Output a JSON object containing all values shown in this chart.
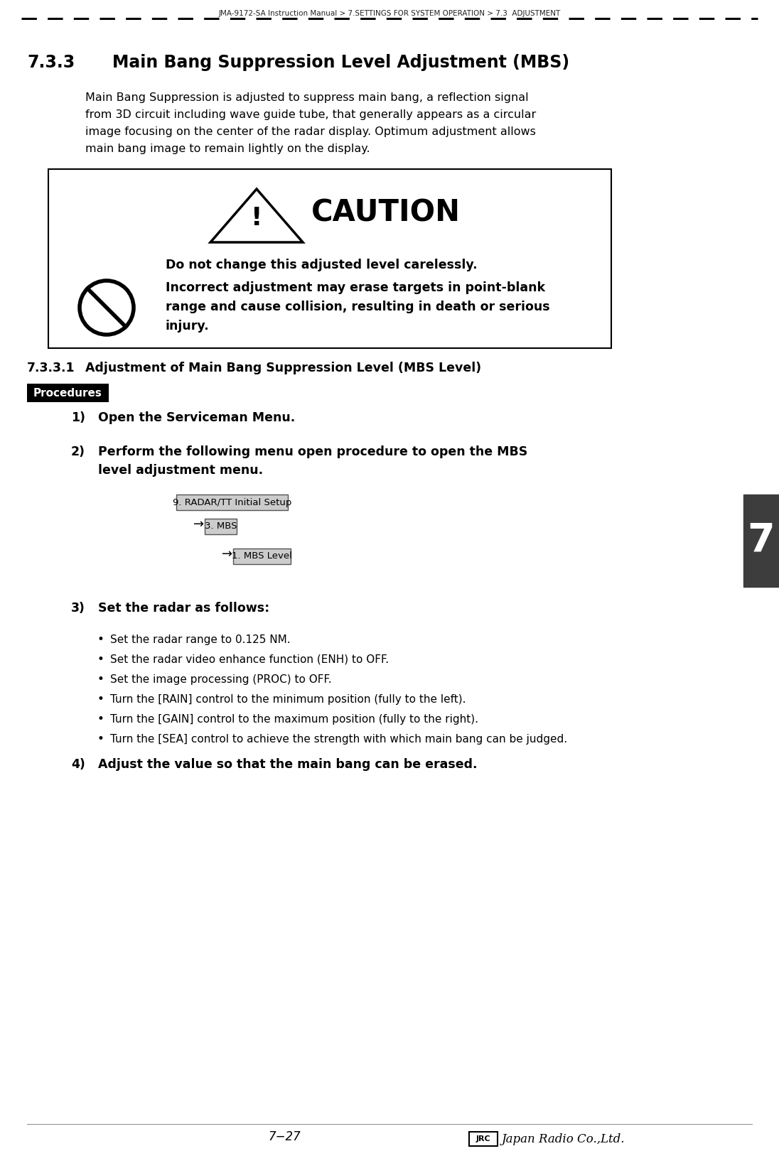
{
  "page_title": "JMA-9172-SA Instruction Manual > 7.SETTINGS FOR SYSTEM OPERATION > 7.3  ADJUSTMENT",
  "section_number": "7.3.3",
  "section_title": "Main Bang Suppression Level Adjustment (MBS)",
  "intro_text_lines": [
    "Main Bang Suppression is adjusted to suppress main bang, a reflection signal",
    "from 3D circuit including wave guide tube, that generally appears as a circular",
    "image focusing on the center of the radar display. Optimum adjustment allows",
    "main bang image to remain lightly on the display."
  ],
  "caution_title": "CAUTION",
  "caution_text1": "Do not change this adjusted level carelessly.",
  "caution_text2_lines": [
    "Incorrect adjustment may erase targets in point-blank",
    "range and cause collision, resulting in death or serious",
    "injury."
  ],
  "subsection_number": "7.3.3.1",
  "subsection_title": "Adjustment of Main Bang Suppression Level (MBS Level)",
  "procedures_label": "Procedures",
  "step1_num": "1)",
  "step1": "Open the Serviceman Menu.",
  "step2_num": "2)",
  "step2_lines": [
    "Perform the following menu open procedure to open the MBS",
    "level adjustment menu."
  ],
  "menu1": "9. RADAR/TT Initial Setup",
  "menu2": "3. MBS",
  "menu3": "1. MBS Level",
  "step3_num": "3)",
  "step3_label": "Set the radar as follows:",
  "bullets": [
    "Set the radar range to 0.125 NM.",
    "Set the radar video enhance function (ENH) to OFF.",
    "Set the image processing (PROC) to OFF.",
    "Turn the [RAIN] control to the minimum position (fully to the left).",
    "Turn the [GAIN] control to the maximum position (fully to the right).",
    "Turn the [SEA] control to achieve the strength with which main bang can be judged."
  ],
  "step4_num": "4)",
  "step4": "Adjust the value so that the main bang can be erased.",
  "page_number": "7−27",
  "tab_number": "7",
  "bg_color": "#ffffff",
  "text_color": "#000000",
  "procedures_bg": "#000000",
  "procedures_text": "#ffffff",
  "tab_color": "#3d3d3d",
  "menu_box_bg": "#cccccc",
  "dashed_line_color": "#000000"
}
